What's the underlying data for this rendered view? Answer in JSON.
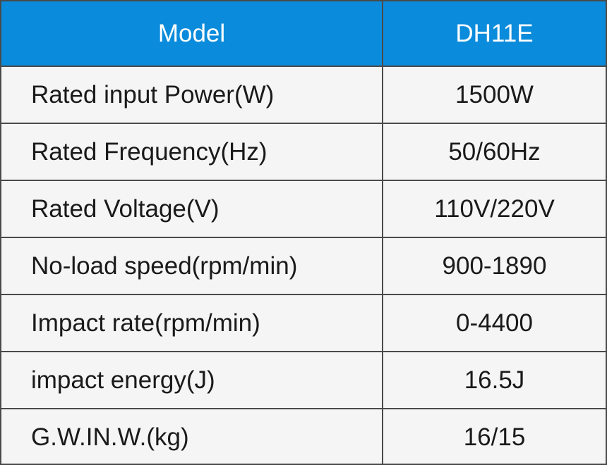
{
  "table": {
    "header": [
      "Model",
      "DH11E"
    ],
    "rows": [
      [
        "Rated input Power(W)",
        "1500W"
      ],
      [
        "Rated Frequency(Hz)",
        "50/60Hz"
      ],
      [
        "Rated Voltage(V)",
        "110V/220V"
      ],
      [
        "No-load speed(rpm/min)",
        "900-1890"
      ],
      [
        "Impact rate(rpm/min)",
        "0-4400"
      ],
      [
        "impact energy(J)",
        "16.5J"
      ],
      [
        "G.W.IN.W.(kg)",
        "16/15"
      ]
    ]
  }
}
